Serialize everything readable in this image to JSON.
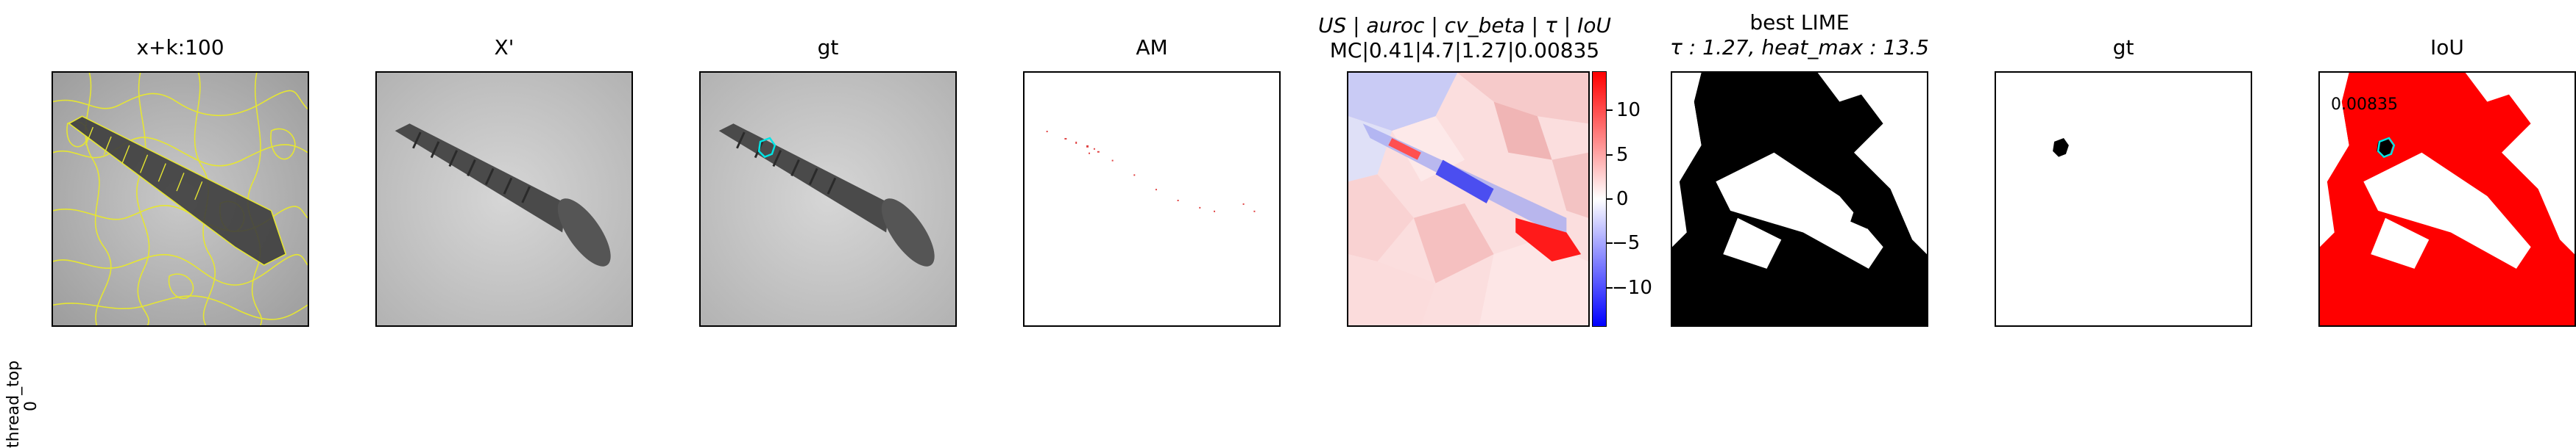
{
  "row_label": {
    "line1": "thread_top",
    "line2": "0"
  },
  "panels": [
    {
      "title": "x+k:100"
    },
    {
      "title": "X'"
    },
    {
      "title": "gt"
    },
    {
      "title": "AM"
    },
    {
      "title_line1": "US | auroc | cv_beta | τ | IoU",
      "title_line2": "MC|0.41|4.7|1.27|0.00835"
    },
    {
      "title_line1": "best LIME",
      "title_line2": "τ : 1.27, heat_max : 13.5"
    },
    {
      "title": "gt"
    },
    {
      "title": "IoU",
      "annotation": "0.00835"
    }
  ],
  "colorbar": {
    "min": -13.5,
    "max": 13.5,
    "ticks": [
      "10",
      "5",
      "0",
      "−5",
      "−10"
    ],
    "tick_values": [
      10,
      5,
      0,
      -5,
      -10
    ],
    "colors": {
      "high": "#ff0000",
      "mid": "#ffffff",
      "low": "#0000ff"
    }
  },
  "colors": {
    "superpixel": "#e6e632",
    "gt_outline": "#00e5e5",
    "iou_red": "#ff0000"
  }
}
